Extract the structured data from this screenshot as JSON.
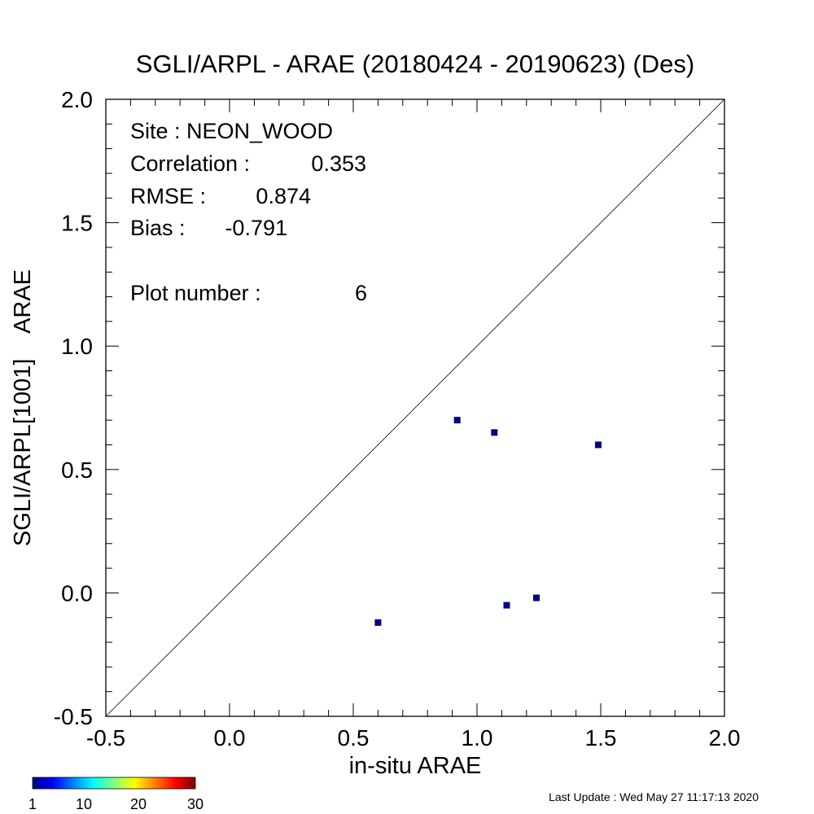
{
  "chart_data": {
    "type": "scatter",
    "title": "SGLI/ARPL - ARAE (20180424 - 20190623) (Des)",
    "xlabel": "in-situ ARAE",
    "ylabel": "SGLI/ARPL[1001]    ARAE",
    "xlim": [
      -0.5,
      2.0
    ],
    "ylim": [
      -0.5,
      2.0
    ],
    "x_ticks": [
      "-0.5",
      "0.0",
      "0.5",
      "1.0",
      "1.5",
      "2.0"
    ],
    "y_ticks": [
      "-0.5",
      "0.0",
      "0.5",
      "1.0",
      "1.5",
      "2.0"
    ],
    "grid": false,
    "one_to_one_line": true,
    "marker_color": "#000080",
    "points": [
      {
        "x": 0.6,
        "y": -0.12
      },
      {
        "x": 0.92,
        "y": 0.7
      },
      {
        "x": 1.07,
        "y": 0.65
      },
      {
        "x": 1.12,
        "y": -0.05
      },
      {
        "x": 1.24,
        "y": -0.02
      },
      {
        "x": 1.49,
        "y": 0.6
      }
    ],
    "stats": {
      "site_label": "Site : NEON_WOOD",
      "correlation_label": "Correlation :",
      "correlation": "0.353",
      "rmse_label": "RMSE :",
      "rmse": "0.874",
      "bias_label": "Bias :",
      "bias": "-0.791",
      "plot_number_label": "Plot number :",
      "plot_number": "6"
    },
    "colorbar": {
      "ticks": [
        "1",
        "10",
        "20",
        "30"
      ],
      "colors": [
        "#000080",
        "#0000ff",
        "#0080ff",
        "#00ffff",
        "#80ff80",
        "#ffff00",
        "#ff8000",
        "#ff0000",
        "#800000"
      ]
    },
    "footer": "Last Update : Wed May 27 11:17:13 2020"
  }
}
